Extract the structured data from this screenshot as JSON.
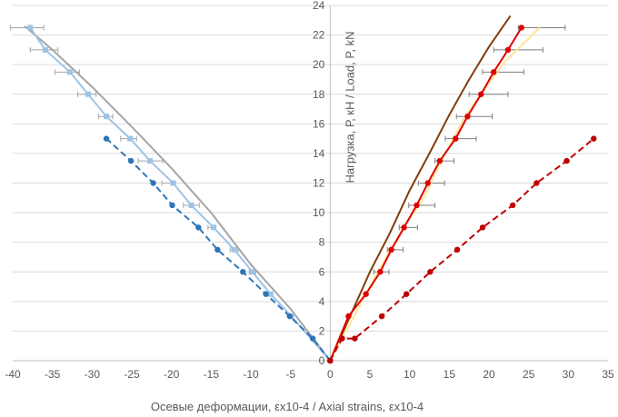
{
  "chart_data": {
    "type": "line",
    "xlabel": "Осевые деформации, εx10-4 / Axial strains, εx10-4",
    "ylabel": "Нагрузка, Р, кН / Load, P, kN",
    "xlim": [
      -40,
      35
    ],
    "ylim": [
      0,
      24
    ],
    "x_ticks": [
      -40,
      -35,
      -30,
      -25,
      -20,
      -15,
      -10,
      -5,
      0,
      5,
      10,
      15,
      20,
      25,
      30,
      35
    ],
    "y_ticks": [
      0,
      2,
      4,
      6,
      8,
      10,
      12,
      14,
      16,
      18,
      20,
      22,
      24
    ],
    "grid": "horizontal",
    "legend": "none",
    "series": [
      {
        "color": "#a5a5a5",
        "style": "solid",
        "marker": "none",
        "points": [
          [
            0,
            0
          ],
          [
            -5,
            3.5
          ],
          [
            -10,
            6.5
          ],
          [
            -15,
            10
          ],
          [
            -20,
            13
          ],
          [
            -25,
            15.8
          ],
          [
            -30,
            18.5
          ],
          [
            -35,
            21
          ],
          [
            -38.5,
            22.6
          ]
        ]
      },
      {
        "color": "#9dc3e6",
        "style": "solid",
        "marker": "square",
        "points": [
          [
            0,
            0
          ],
          [
            -4.9,
            3
          ],
          [
            -7.5,
            4.5
          ],
          [
            -9.8,
            6
          ],
          [
            -12.1,
            7.5
          ],
          [
            -14.7,
            9
          ],
          [
            -17.5,
            10.5
          ],
          [
            -19.8,
            12
          ],
          [
            -22.7,
            13.5
          ],
          [
            -25.2,
            15
          ],
          [
            -28.2,
            16.5
          ],
          [
            -30.5,
            18
          ],
          [
            -32.8,
            19.5
          ],
          [
            -35.9,
            21
          ],
          [
            -37.8,
            22.5
          ]
        ]
      },
      {
        "color": "#2e75b6",
        "style": "dashed",
        "marker": "circle",
        "points": [
          [
            0,
            0
          ],
          [
            -2.2,
            1.5
          ],
          [
            -5.1,
            3
          ],
          [
            -8.1,
            4.5
          ],
          [
            -11,
            6
          ],
          [
            -14.2,
            7.5
          ],
          [
            -16.6,
            9
          ],
          [
            -19.9,
            10.5
          ],
          [
            -22.3,
            12
          ],
          [
            -25.1,
            13.5
          ],
          [
            -28.2,
            15
          ]
        ]
      },
      {
        "color": "#843c0c",
        "style": "solid",
        "marker": "none",
        "points": [
          [
            0,
            0
          ],
          [
            2.5,
            3
          ],
          [
            5,
            6
          ],
          [
            7.5,
            8.6
          ],
          [
            10,
            11.5
          ],
          [
            12.5,
            14
          ],
          [
            15,
            16.6
          ],
          [
            17.5,
            19
          ],
          [
            20,
            21.2
          ],
          [
            22.7,
            23.3
          ]
        ]
      },
      {
        "color": "#ffe699",
        "style": "solid",
        "marker": "none",
        "points": [
          [
            0,
            0
          ],
          [
            3,
            3
          ],
          [
            6,
            6
          ],
          [
            9.2,
            9
          ],
          [
            11.8,
            11
          ],
          [
            14,
            13.5
          ],
          [
            17,
            16.5
          ],
          [
            19.7,
            18.5
          ],
          [
            22,
            20.2
          ],
          [
            26.4,
            22.5
          ]
        ]
      },
      {
        "color": "#e00000",
        "style": "solid",
        "marker": "circle",
        "points": [
          [
            0,
            0
          ],
          [
            2.3,
            3
          ],
          [
            4.5,
            4.5
          ],
          [
            6.3,
            6
          ],
          [
            7.7,
            7.5
          ],
          [
            9.3,
            9
          ],
          [
            10.9,
            10.5
          ],
          [
            12.3,
            12
          ],
          [
            13.8,
            13.5
          ],
          [
            15.8,
            15
          ],
          [
            17.3,
            16.5
          ],
          [
            19,
            18
          ],
          [
            20.6,
            19.5
          ],
          [
            22.4,
            21
          ],
          [
            24.1,
            22.5
          ]
        ]
      },
      {
        "color": "#c00000",
        "style": "dashed",
        "marker": "circle",
        "points": [
          [
            0,
            0
          ],
          [
            1.5,
            1.5
          ],
          [
            3.1,
            1.5
          ],
          [
            6.5,
            3
          ],
          [
            9.6,
            4.5
          ],
          [
            12.6,
            6
          ],
          [
            16,
            7.5
          ],
          [
            19.2,
            9
          ],
          [
            23,
            10.5
          ],
          [
            26,
            12
          ],
          [
            29.8,
            13.5
          ],
          [
            33.2,
            15
          ]
        ]
      }
    ],
    "error_bars": [
      {
        "x": -37.8,
        "y": 22.5,
        "lo": -40.3,
        "hi": -36.1,
        "color": "#a5a5a5"
      },
      {
        "x": -35.9,
        "y": 21,
        "lo": -37.8,
        "hi": -34.3,
        "color": "#a5a5a5"
      },
      {
        "x": -32.8,
        "y": 19.5,
        "lo": -34.7,
        "hi": -31.6,
        "color": "#a5a5a5"
      },
      {
        "x": -30.5,
        "y": 18,
        "lo": -31.8,
        "hi": -29.5,
        "color": "#a5a5a5"
      },
      {
        "x": -28.2,
        "y": 16.5,
        "lo": -29.2,
        "hi": -27.4,
        "color": "#a5a5a5"
      },
      {
        "x": -25.2,
        "y": 15,
        "lo": -26.4,
        "hi": -24.4,
        "color": "#a5a5a5"
      },
      {
        "x": -22.7,
        "y": 13.5,
        "lo": -24.2,
        "hi": -21.1,
        "color": "#a5a5a5"
      },
      {
        "x": -19.8,
        "y": 12,
        "lo": -21.2,
        "hi": -19.5,
        "color": "#a5a5a5"
      },
      {
        "x": -17.5,
        "y": 10.5,
        "lo": -18.5,
        "hi": -16.5,
        "color": "#a5a5a5"
      },
      {
        "x": -14.7,
        "y": 9,
        "lo": -15.4,
        "hi": -14.4,
        "color": "#a5a5a5"
      },
      {
        "x": -12.1,
        "y": 7.5,
        "lo": -12.6,
        "hi": -11.6,
        "color": "#a5a5a5"
      },
      {
        "x": -9.8,
        "y": 6,
        "lo": -10.2,
        "hi": -9.4,
        "color": "#a5a5a5"
      },
      {
        "x": 24.1,
        "y": 22.5,
        "lo": 23.7,
        "hi": 29.6,
        "color": "#7f7f7f"
      },
      {
        "x": 22.4,
        "y": 21,
        "lo": 20.6,
        "hi": 26.8,
        "color": "#7f7f7f"
      },
      {
        "x": 20.6,
        "y": 19.5,
        "lo": 19.2,
        "hi": 24.4,
        "color": "#7f7f7f"
      },
      {
        "x": 19,
        "y": 18,
        "lo": 17.5,
        "hi": 22.4,
        "color": "#7f7f7f"
      },
      {
        "x": 17.3,
        "y": 16.5,
        "lo": 15.9,
        "hi": 20.4,
        "color": "#7f7f7f"
      },
      {
        "x": 15.8,
        "y": 15,
        "lo": 14.5,
        "hi": 18.4,
        "color": "#7f7f7f"
      },
      {
        "x": 13.8,
        "y": 13.5,
        "lo": 13.2,
        "hi": 15.6,
        "color": "#7f7f7f"
      },
      {
        "x": 12.3,
        "y": 12,
        "lo": 11.1,
        "hi": 14.4,
        "color": "#7f7f7f"
      },
      {
        "x": 10.9,
        "y": 10.5,
        "lo": 9.9,
        "hi": 13.2,
        "color": "#7f7f7f"
      },
      {
        "x": 9.3,
        "y": 9,
        "lo": 8.7,
        "hi": 11
      },
      {
        "x": 7.7,
        "y": 7.5,
        "lo": 7.2,
        "hi": 9.2
      },
      {
        "x": 6.3,
        "y": 6,
        "lo": 5.5,
        "hi": 7.4
      }
    ]
  }
}
